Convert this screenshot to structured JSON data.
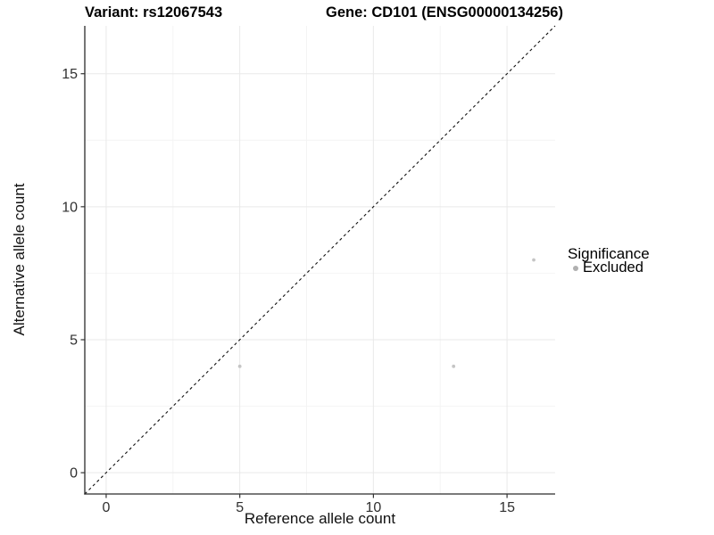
{
  "chart_data": {
    "type": "scatter",
    "variant_title": "Variant: rs12067543",
    "gene_title": "Gene: CD101 (ENSG00000134256)",
    "xlabel": "Reference allele count",
    "ylabel": "Alternative allele count",
    "xlim": [
      -0.8,
      16.8
    ],
    "ylim": [
      -0.8,
      16.8
    ],
    "xticks": [
      0,
      5,
      10,
      15
    ],
    "yticks": [
      0,
      5,
      10,
      15
    ],
    "minor_gridlines": [
      2.5,
      7.5,
      12.5
    ],
    "grid": true,
    "points": [
      {
        "x": 5,
        "y": 4,
        "significance": "Excluded"
      },
      {
        "x": 13,
        "y": 4,
        "significance": "Excluded"
      },
      {
        "x": 16,
        "y": 8,
        "significance": "Excluded"
      }
    ],
    "identity_line": {
      "equation": "y = x",
      "style": "dashed",
      "color": "#111111"
    },
    "legend": {
      "title": "Significance",
      "position": "right",
      "items": [
        {
          "label": "Excluded",
          "color": "#b0b0b0"
        }
      ]
    },
    "colors": {
      "point": "#c5c5c5",
      "grid_major": "#e9e9e9",
      "grid_minor": "#f4f4f4",
      "axis_line": "#2b2b2b",
      "tick_mark": "#333333",
      "tick_label": "#303030"
    }
  }
}
